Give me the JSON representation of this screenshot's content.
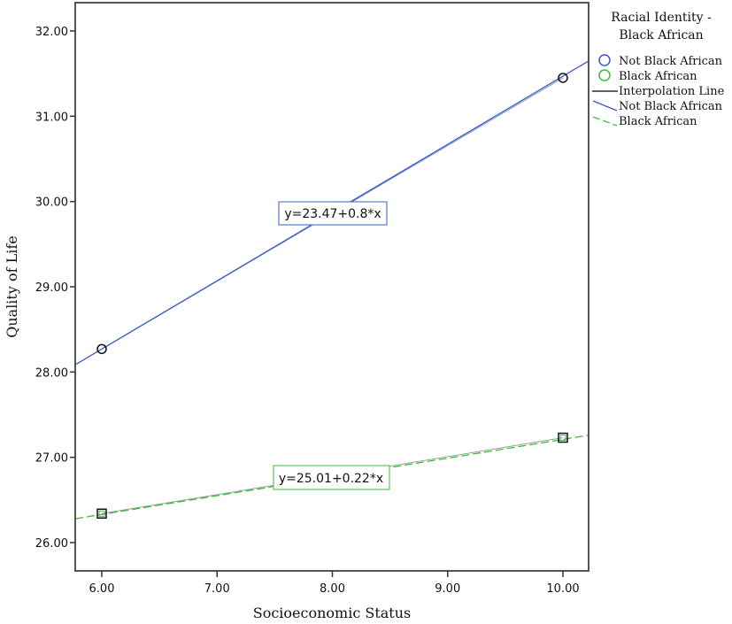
{
  "chart_data": {
    "type": "line",
    "title": "",
    "xlabel": "Socioeconomic Status",
    "ylabel": "Quality of Life",
    "xlim": [
      5.77,
      10.23
    ],
    "ylim": [
      25.67,
      32.33
    ],
    "x_ticks": [
      "6.00",
      "7.00",
      "8.00",
      "9.00",
      "10.00"
    ],
    "y_ticks": [
      "26.00",
      "27.00",
      "28.00",
      "29.00",
      "30.00",
      "31.00",
      "32.00"
    ],
    "grid": false,
    "legend_position": "right",
    "legend": {
      "title_line1": "Racial Identity -",
      "title_line2": "Black African",
      "entries": [
        {
          "label": "Not Black African",
          "type": "marker-circle",
          "color": "#3b5bbf"
        },
        {
          "label": "Black African",
          "type": "marker-circle",
          "color": "#3dbb3d"
        },
        {
          "label": "Interpolation Line",
          "type": "line-solid",
          "color": "#000000"
        },
        {
          "label": "Not Black African",
          "type": "line-solid",
          "color": "#3b5bbf"
        },
        {
          "label": "Black African",
          "type": "line-dashed",
          "color": "#3dbb3d"
        }
      ]
    },
    "series": [
      {
        "name": "Not Black African",
        "color": "#3b5bbf",
        "points": [
          {
            "x": 6.0,
            "y": 28.27
          },
          {
            "x": 10.0,
            "y": 31.45
          }
        ],
        "fit": {
          "intercept": 23.47,
          "slope": 0.8,
          "label": "y=23.47+0.8*x",
          "style": "solid"
        }
      },
      {
        "name": "Black African",
        "color": "#3dbb3d",
        "points": [
          {
            "x": 6.0,
            "y": 26.34
          },
          {
            "x": 10.0,
            "y": 27.23
          }
        ],
        "fit": {
          "intercept": 25.01,
          "slope": 0.22,
          "label": "y=25.01+0.22*x",
          "style": "dashed"
        }
      }
    ]
  }
}
